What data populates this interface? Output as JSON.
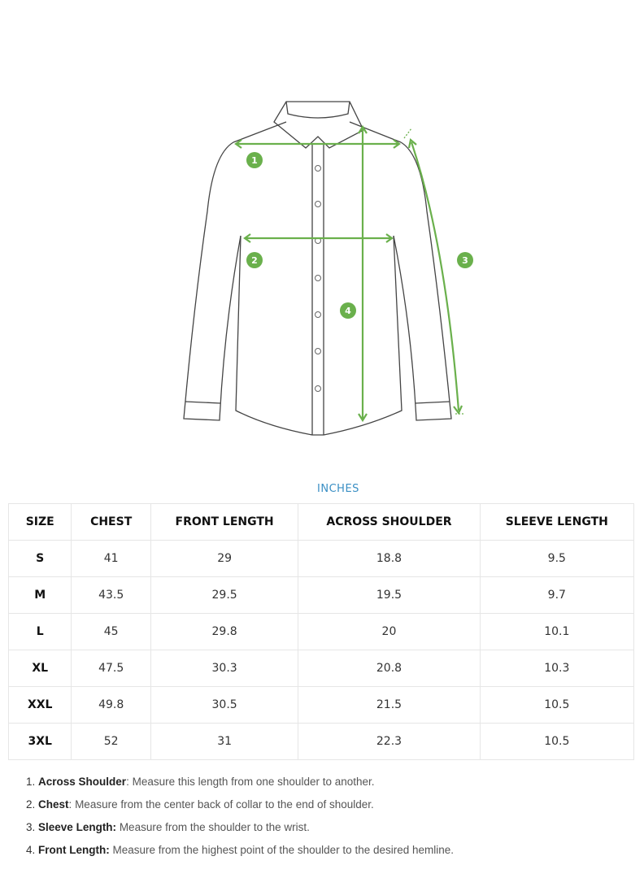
{
  "colors": {
    "accent": "#6ab04c",
    "unit_label": "#3a8fc4"
  },
  "diagram": {
    "markers": [
      "1",
      "2",
      "3",
      "4"
    ]
  },
  "unit": "INCHES",
  "table": {
    "headers": [
      "SIZE",
      "CHEST",
      "FRONT LENGTH",
      "ACROSS SHOULDER",
      "SLEEVE LENGTH"
    ],
    "rows": [
      [
        "S",
        "41",
        "29",
        "18.8",
        "9.5"
      ],
      [
        "M",
        "43.5",
        "29.5",
        "19.5",
        "9.7"
      ],
      [
        "L",
        "45",
        "29.8",
        "20",
        "10.1"
      ],
      [
        "XL",
        "47.5",
        "30.3",
        "20.8",
        "10.3"
      ],
      [
        "XXL",
        "49.8",
        "30.5",
        "21.5",
        "10.5"
      ],
      [
        "3XL",
        "52",
        "31",
        "22.3",
        "10.5"
      ]
    ]
  },
  "notes": [
    {
      "num": "1.",
      "term": "Across Shoulder",
      "sep": ":",
      "text": " Measure this length from one shoulder to another."
    },
    {
      "num": "2.",
      "term": "Chest",
      "sep": ":",
      "text": " Measure from the center back of collar to the end of shoulder."
    },
    {
      "num": "3.",
      "term": "Sleeve Length:",
      "sep": "",
      "text": " Measure from the shoulder to the wrist."
    },
    {
      "num": "4.",
      "term": "Front Length:",
      "sep": "",
      "text": " Measure from the highest point of the shoulder to the desired hemline."
    }
  ]
}
